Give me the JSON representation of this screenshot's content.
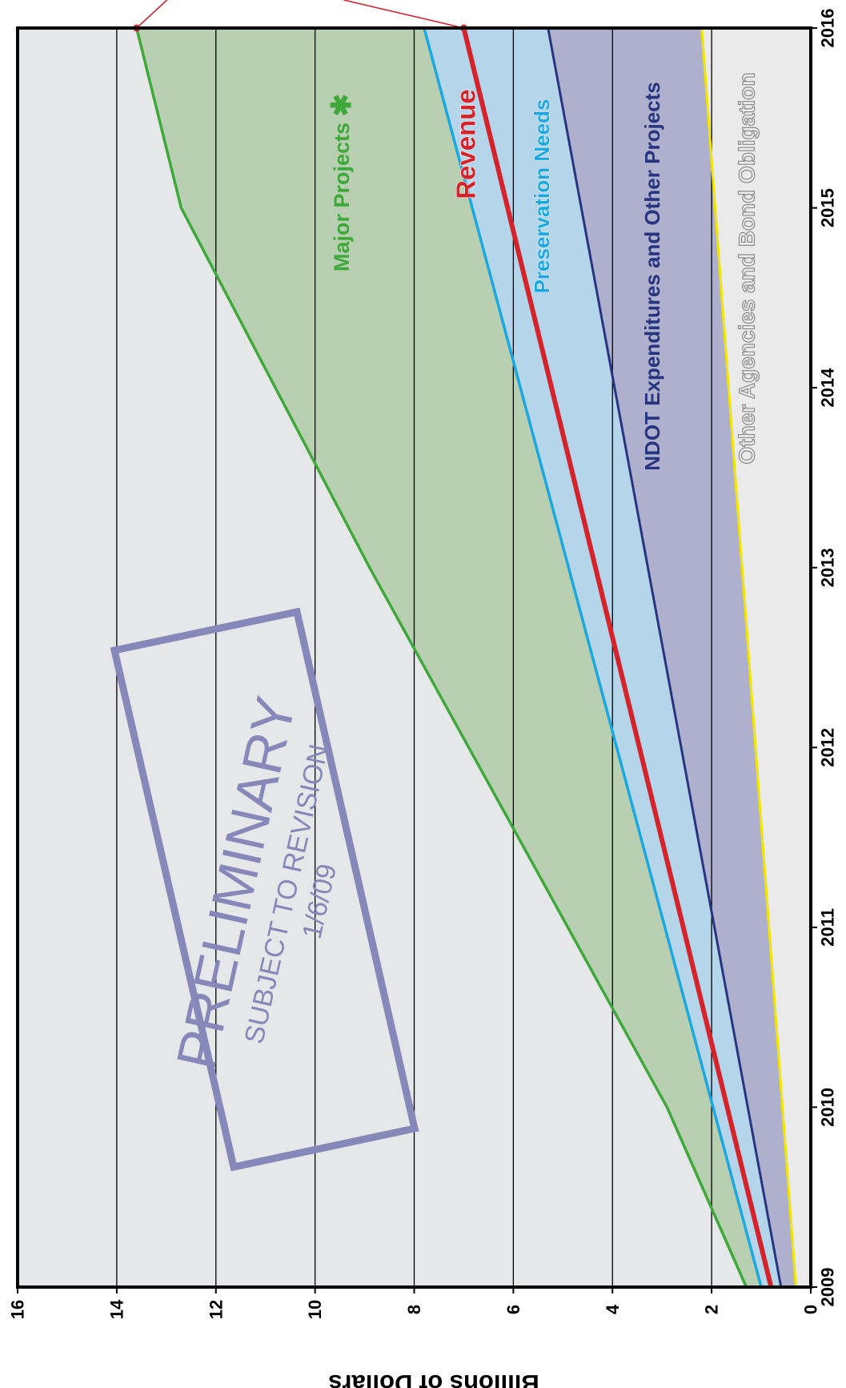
{
  "chart_data": {
    "type": "area",
    "orientation": "rotated-90-clockwise",
    "ylabel": "Billions of Dollars",
    "x": [
      2009,
      2010,
      2011,
      2012,
      2013,
      2014,
      2015,
      2016
    ],
    "x_ticks": [
      "2009",
      "2010",
      "2011",
      "2012",
      "2013",
      "2014",
      "2015",
      "2016"
    ],
    "y_ticks": [
      "0",
      "2",
      "4",
      "6",
      "8",
      "10",
      "12",
      "14",
      "16"
    ],
    "xlim": [
      2009,
      2016
    ],
    "ylim": [
      0,
      16
    ],
    "grid": "horizontal",
    "series": [
      {
        "name": "Other Agencies and Bond Obligation",
        "x": [
          2009,
          2016
        ],
        "values": [
          0.3,
          2.2
        ],
        "line_color": "#f2e600",
        "fill_color": "#eaeaea"
      },
      {
        "name": "NDOT Expenditures and Other Projects",
        "x": [
          2009,
          2016
        ],
        "values": [
          0.6,
          5.3
        ],
        "line_color": "#27347f",
        "fill_color": "#aeb0cd"
      },
      {
        "name": "Revenue",
        "x": [
          2009,
          2016
        ],
        "values": [
          0.8,
          7.0
        ],
        "line_color": "#d4242b",
        "fill_color": "#b5d6ea"
      },
      {
        "name": "Preservation Needs",
        "x": [
          2009,
          2016
        ],
        "values": [
          1.0,
          7.8
        ],
        "line_color": "#1ba7e0",
        "fill_color": "#b5d6ea"
      },
      {
        "name": "Major Projects",
        "x": [
          2009,
          2010,
          2011,
          2012,
          2013,
          2014,
          2015,
          2016
        ],
        "values": [
          1.3,
          2.9,
          4.9,
          6.9,
          8.9,
          10.8,
          12.7,
          13.6
        ],
        "line_color": "#3fa83a",
        "fill_color": "#b8cfb1"
      }
    ],
    "annotations": {
      "major_projects_mark": "✱",
      "stamp_title": "PRELIMINARY",
      "stamp_subtitle": "SUBJECT TO REVISION",
      "stamp_date": "1/6/09"
    },
    "colors": {
      "plot_background": "#e6e7e8",
      "stamp": "#8688b9",
      "callout": "#d4242b"
    }
  }
}
